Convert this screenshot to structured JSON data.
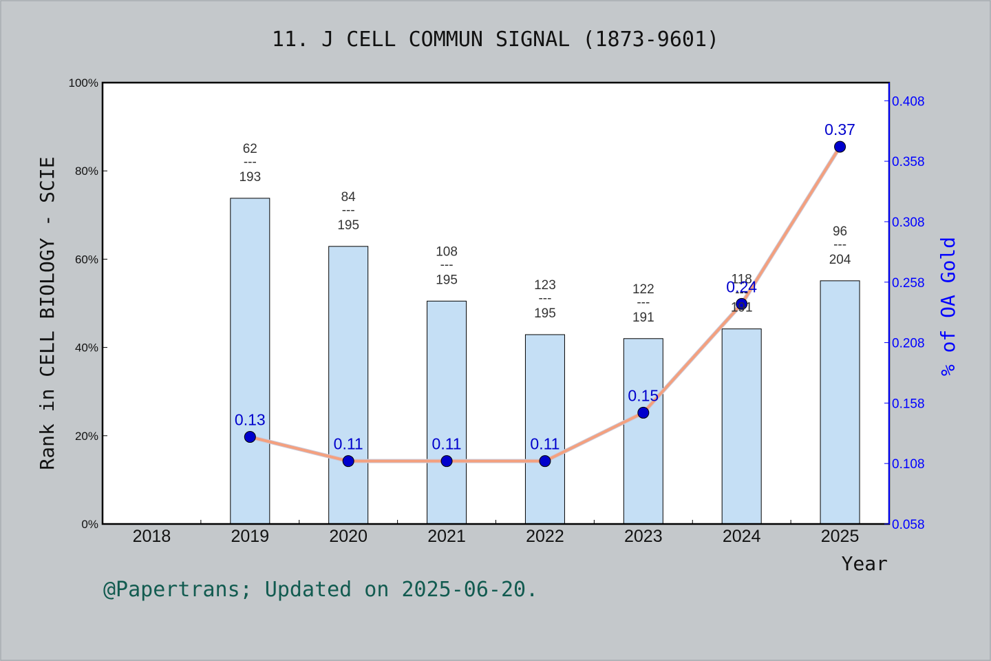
{
  "title": "11. J CELL COMMUN SIGNAL (1873-9601)",
  "footer": "@Papertrans; Updated on 2025-06-20.",
  "colors": {
    "background": "#c4c8cb",
    "plot_background": "#ffffff",
    "bar_fill": "#c5dff5",
    "line_color": "#f4a07e",
    "line_highlight": "#c9c9da",
    "marker": "#0000cc",
    "right_axis": "#0000ff",
    "oa_label": "#0000cc",
    "footer": "#125b50"
  },
  "chart_data": {
    "type": "bar",
    "categories": [
      "2018",
      "2019",
      "2020",
      "2021",
      "2022",
      "2023",
      "2024",
      "2025"
    ],
    "xlabel": "Year",
    "ylabel": "Rank in CELL BIOLOGY - SCIE",
    "y2label": "% of OA Gold",
    "ylim": [
      0,
      100
    ],
    "y_ticks": [
      "0%",
      "20%",
      "40%",
      "60%",
      "80%",
      "100%"
    ],
    "y2lim": [
      0.058,
      0.423
    ],
    "y2_ticks": [
      "0.058",
      "0.108",
      "0.158",
      "0.208",
      "0.258",
      "0.308",
      "0.358",
      "0.408"
    ],
    "bars": [
      {
        "year": "2019",
        "rank": "62",
        "total": "193",
        "value": 73.8
      },
      {
        "year": "2020",
        "rank": "84",
        "total": "195",
        "value": 62.9
      },
      {
        "year": "2021",
        "rank": "108",
        "total": "195",
        "value": 50.5
      },
      {
        "year": "2022",
        "rank": "123",
        "total": "195",
        "value": 42.9
      },
      {
        "year": "2023",
        "rank": "122",
        "total": "191",
        "value": 42.0
      },
      {
        "year": "2024",
        "rank": "118",
        "total": "191",
        "value": 44.2
      },
      {
        "year": "2025",
        "rank": "96",
        "total": "204",
        "value": 55.1
      }
    ],
    "rank_separator": "---",
    "oa_series": [
      {
        "year": "2019",
        "value": 0.13,
        "label": "0.13"
      },
      {
        "year": "2020",
        "value": 0.11,
        "label": "0.11"
      },
      {
        "year": "2021",
        "value": 0.11,
        "label": "0.11"
      },
      {
        "year": "2022",
        "value": 0.11,
        "label": "0.11"
      },
      {
        "year": "2023",
        "value": 0.15,
        "label": "0.15"
      },
      {
        "year": "2024",
        "value": 0.24,
        "label": "0.24"
      },
      {
        "year": "2025",
        "value": 0.37,
        "label": "0.37"
      }
    ],
    "grid": false,
    "legend": "none"
  }
}
